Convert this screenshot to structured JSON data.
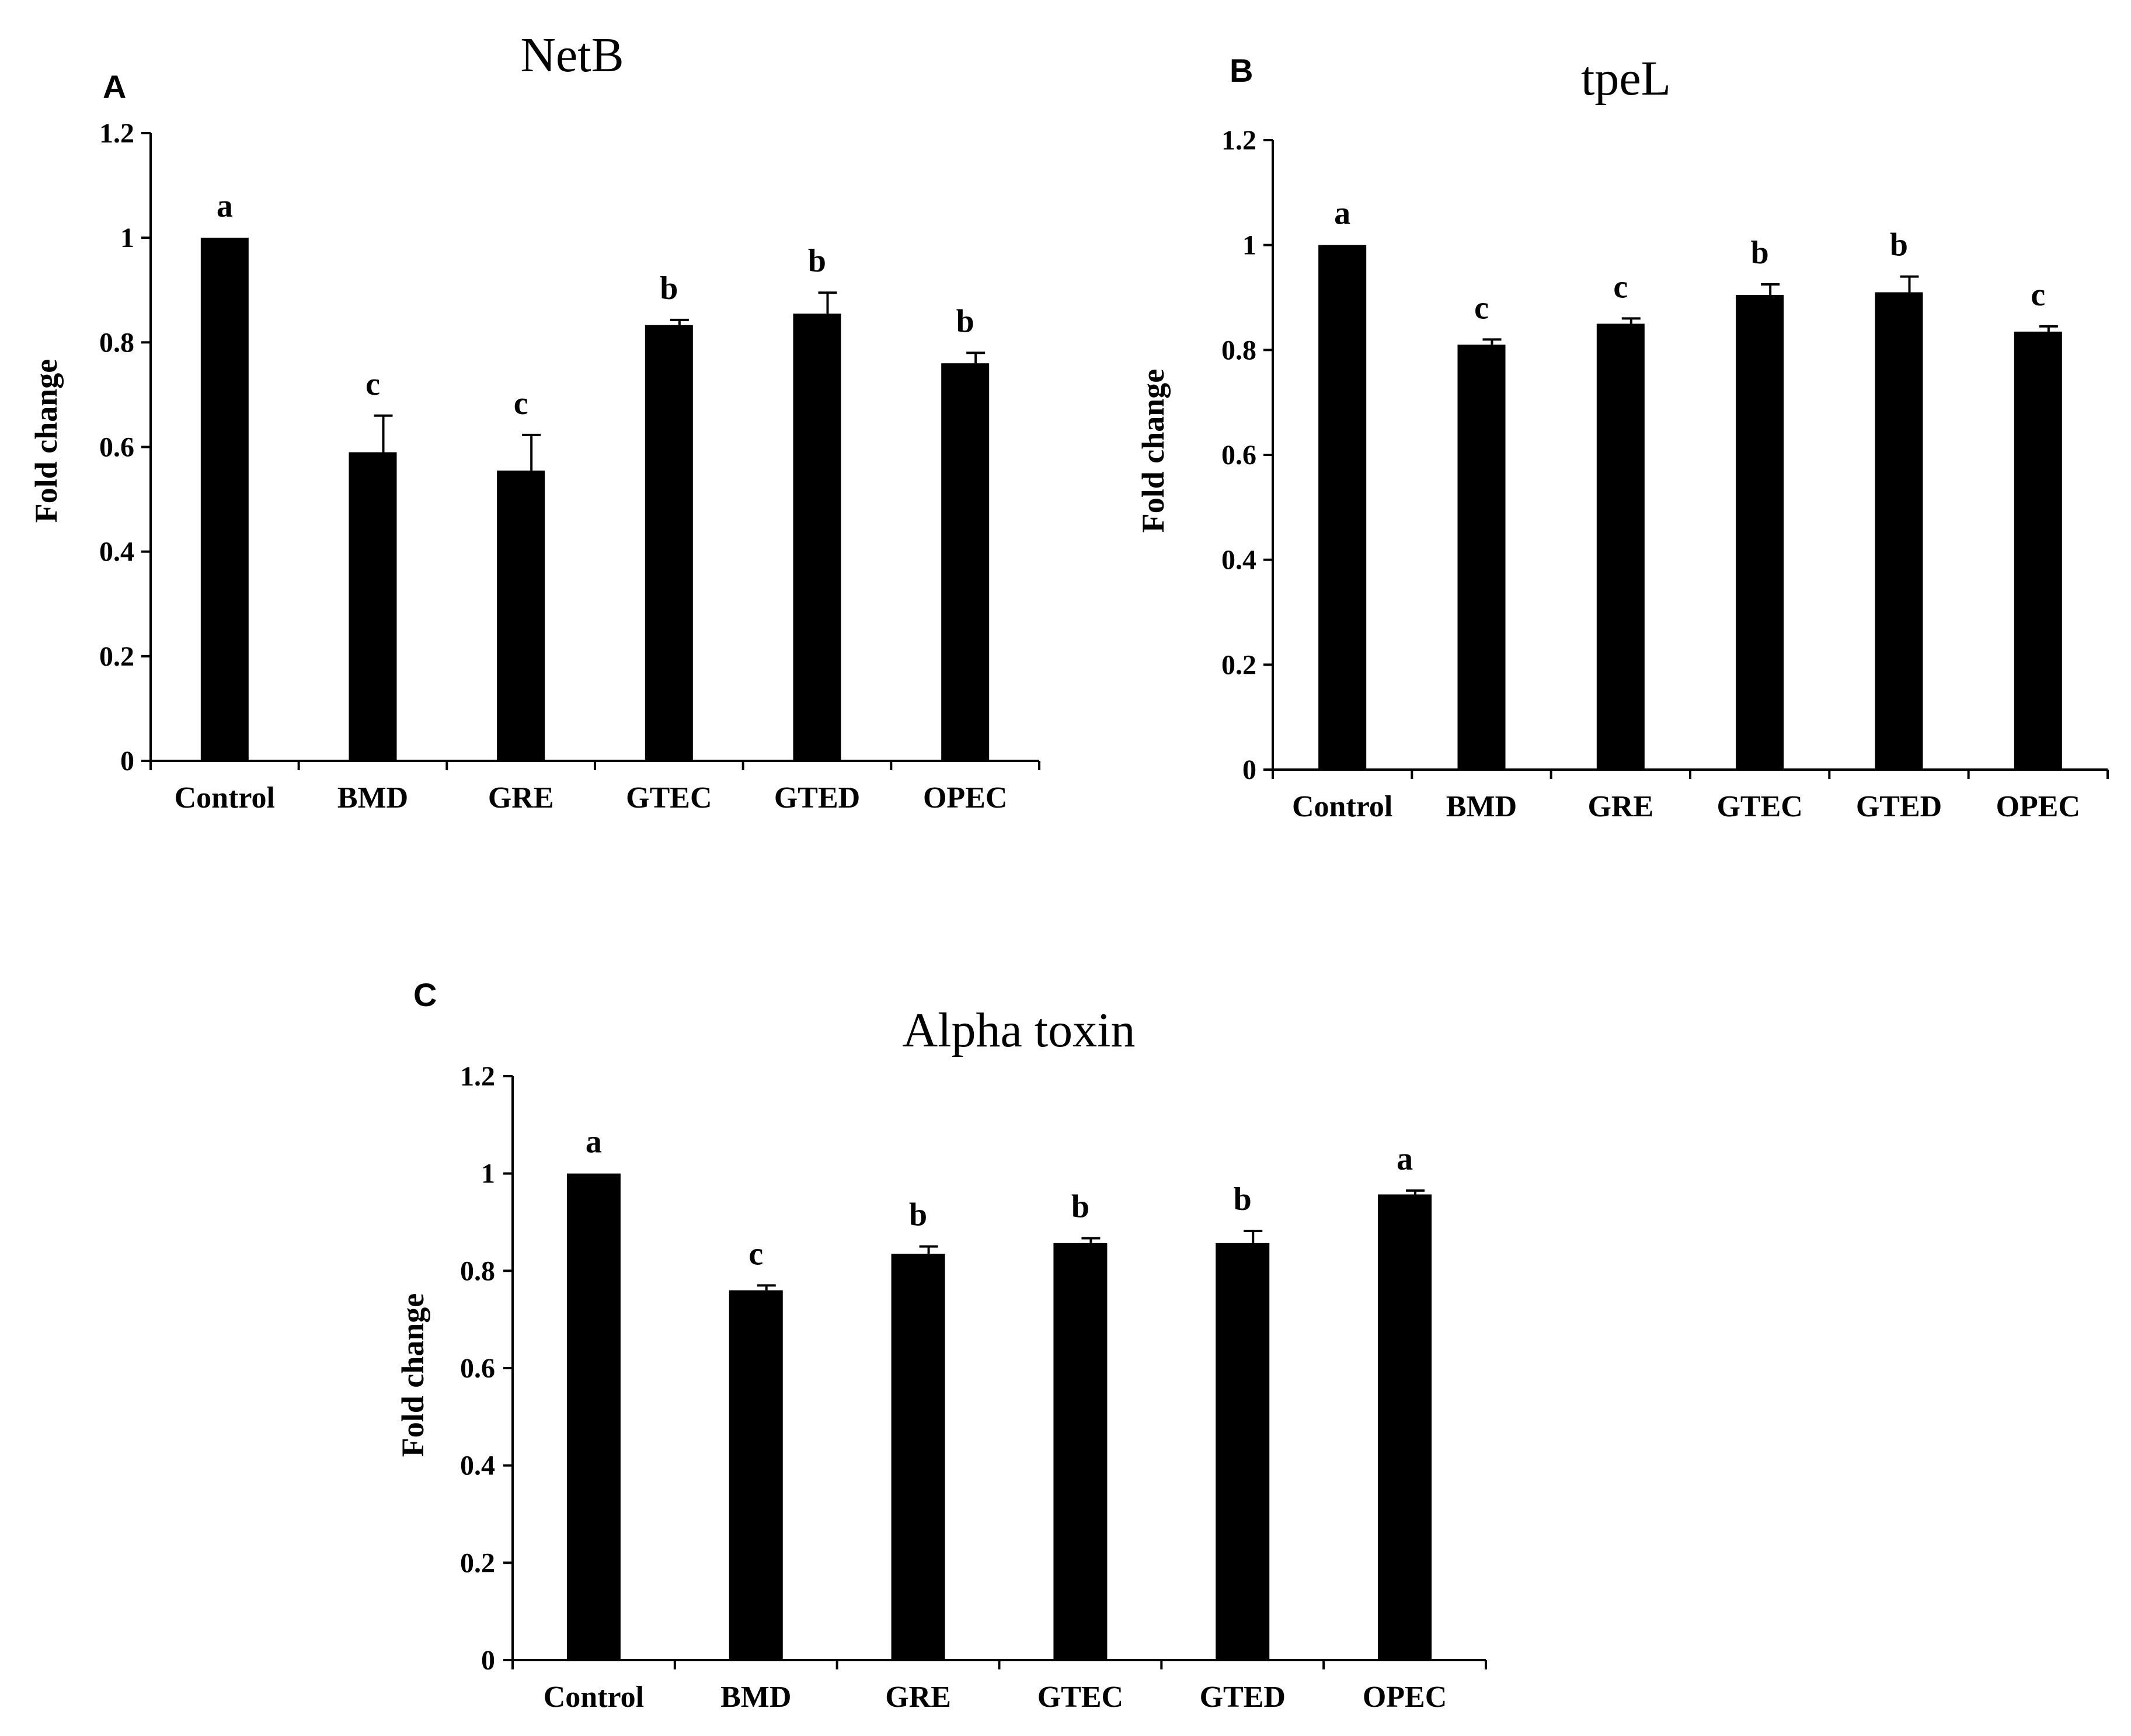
{
  "chart_data": [
    {
      "panel": "A",
      "type": "bar",
      "title": "NetB",
      "xlabel": "",
      "ylabel": "Fold change",
      "ylim": [
        0,
        1.2
      ],
      "yticks": [
        "0",
        "0.2",
        "0.4",
        "0.6",
        "0.8",
        "1",
        "1.2"
      ],
      "categories": [
        "Control",
        "BMD",
        "GRE",
        "GTEC",
        "GTED",
        "OPEC"
      ],
      "values": [
        1.0,
        0.59,
        0.555,
        0.833,
        0.855,
        0.76
      ],
      "errors": [
        0.0,
        0.07,
        0.068,
        0.01,
        0.04,
        0.02
      ],
      "significance": [
        "a",
        "c",
        "c",
        "b",
        "b",
        "b"
      ],
      "bar_color": "#000000"
    },
    {
      "panel": "B",
      "type": "bar",
      "title": "tpeL",
      "xlabel": "",
      "ylabel": "Fold change",
      "ylim": [
        0,
        1.2
      ],
      "yticks": [
        "0",
        "0.2",
        "0.4",
        "0.6",
        "0.8",
        "1",
        "1.2"
      ],
      "categories": [
        "Control",
        "BMD",
        "GRE",
        "GTEC",
        "GTED",
        "OPEC"
      ],
      "values": [
        1.0,
        0.81,
        0.85,
        0.905,
        0.91,
        0.835
      ],
      "errors": [
        0.0,
        0.01,
        0.01,
        0.02,
        0.03,
        0.01
      ],
      "significance": [
        "a",
        "c",
        "c",
        "b",
        "b",
        "c"
      ],
      "bar_color": "#000000"
    },
    {
      "panel": "C",
      "type": "bar",
      "title": "Alpha toxin",
      "xlabel": "",
      "ylabel": "Fold change",
      "ylim": [
        0,
        1.2
      ],
      "yticks": [
        "0",
        "0.2",
        "0.4",
        "0.6",
        "0.8",
        "1",
        "1.2"
      ],
      "categories": [
        "Control",
        "BMD",
        "GRE",
        "GTEC",
        "GTED",
        "OPEC"
      ],
      "values": [
        1.0,
        0.76,
        0.835,
        0.857,
        0.857,
        0.957
      ],
      "errors": [
        0.0,
        0.01,
        0.015,
        0.01,
        0.025,
        0.008
      ],
      "significance": [
        "a",
        "c",
        "b",
        "b",
        "b",
        "a"
      ],
      "bar_color": "#000000"
    }
  ]
}
